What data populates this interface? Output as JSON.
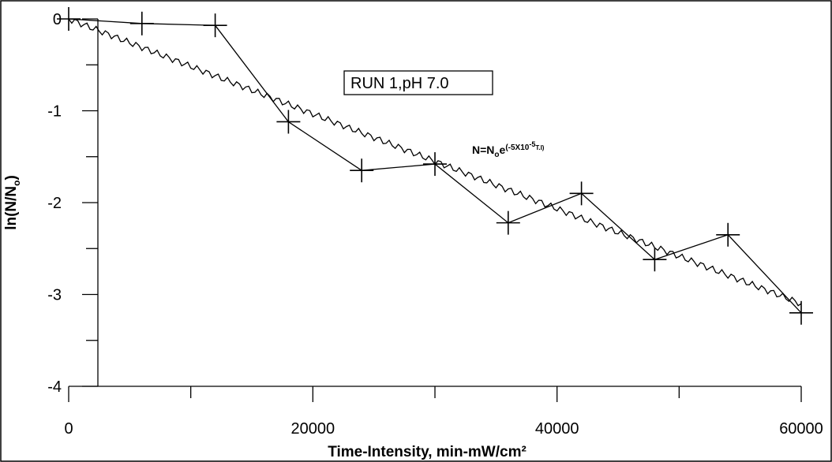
{
  "chart_data": {
    "type": "line",
    "title": "",
    "xlabel": "Time-Intensity, min-mW/cm²",
    "ylabel": "ln(N/N",
    "ylabel_sub": "o",
    "ylabel_tail": ")",
    "xlim": [
      0,
      62500
    ],
    "ylim": [
      -4,
      0
    ],
    "x_ticks": [
      0,
      20000,
      40000,
      60000
    ],
    "x_tick_labels": [
      "0",
      "20000",
      "40000",
      "60000"
    ],
    "y_ticks": [
      0,
      -1,
      -2,
      -3,
      -4
    ],
    "y_tick_labels": [
      "0",
      "-1",
      "-2",
      "-3",
      "-4"
    ],
    "grid": false,
    "series": [
      {
        "marker": "plus",
        "x": [
          0,
          6000,
          12000,
          18000,
          24000,
          30000,
          36000,
          42000,
          48000,
          54000,
          60000
        ],
        "y": [
          0,
          -0.05,
          -0.07,
          -1.12,
          -1.65,
          -1.58,
          -2.22,
          -1.9,
          -2.62,
          -2.35,
          -3.2
        ]
      },
      {
        "marker": "none",
        "fit": "exponential",
        "rate": -5e-05,
        "x": [
          0,
          60000
        ],
        "y": [
          0,
          -3.1
        ]
      }
    ],
    "annotations": {
      "run_label": "RUN 1,pH 7.0",
      "formula": {
        "base": "N=N",
        "sub": "o",
        "e": "e",
        "sup_open": "(-5X10",
        "sup_exp": "-5",
        "sup_close": "T.I)"
      }
    }
  }
}
